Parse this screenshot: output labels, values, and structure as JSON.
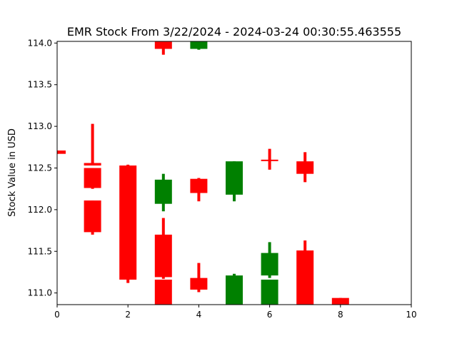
{
  "chart_data": {
    "type": "candlestick",
    "title": "EMR Stock From 3/22/2024 - 2024-03-24 00:30:55.463555",
    "xlabel": "",
    "ylabel": "Stock Value in USD",
    "xlim": [
      0,
      10
    ],
    "ylim": [
      110.86,
      114.02
    ],
    "x_ticks": [
      "0",
      "2",
      "4",
      "6",
      "8",
      "10"
    ],
    "y_ticks": [
      "111.0",
      "111.5",
      "112.0",
      "112.5",
      "113.0",
      "113.5",
      "114.0"
    ],
    "grid": false,
    "colors": {
      "up": "#008000",
      "down": "#ff0000"
    },
    "candles": [
      {
        "x": 0.0,
        "open": 112.71,
        "close": 112.67,
        "high": 112.71,
        "low": 112.67,
        "direction": "down"
      },
      {
        "x": 1.0,
        "open": 112.56,
        "close": 112.53,
        "high": 113.03,
        "low": 112.53,
        "direction": "down"
      },
      {
        "x": 1.0,
        "open": 112.5,
        "close": 112.26,
        "high": 112.5,
        "low": 112.25,
        "direction": "down"
      },
      {
        "x": 1.0,
        "open": 112.11,
        "close": 111.73,
        "high": 112.11,
        "low": 111.7,
        "direction": "down"
      },
      {
        "x": 2.0,
        "open": 112.53,
        "close": 111.16,
        "high": 112.54,
        "low": 111.12,
        "direction": "down"
      },
      {
        "x": 3.0,
        "open": 114.02,
        "close": 113.93,
        "high": 114.02,
        "low": 113.86,
        "direction": "down"
      },
      {
        "x": 3.0,
        "open": 112.07,
        "close": 112.36,
        "high": 112.43,
        "low": 111.98,
        "direction": "up"
      },
      {
        "x": 3.0,
        "open": 111.7,
        "close": 111.19,
        "high": 111.9,
        "low": 111.17,
        "direction": "down"
      },
      {
        "x": 3.0,
        "open": 111.16,
        "close": 110.86,
        "high": 111.16,
        "low": 110.86,
        "direction": "down"
      },
      {
        "x": 4.0,
        "open": 113.93,
        "close": 114.02,
        "high": 114.02,
        "low": 113.92,
        "direction": "up"
      },
      {
        "x": 4.0,
        "open": 112.37,
        "close": 112.2,
        "high": 112.38,
        "low": 112.1,
        "direction": "down"
      },
      {
        "x": 4.0,
        "open": 111.18,
        "close": 111.04,
        "high": 111.36,
        "low": 111.01,
        "direction": "down"
      },
      {
        "x": 5.0,
        "open": 112.18,
        "close": 112.58,
        "high": 112.58,
        "low": 112.1,
        "direction": "up"
      },
      {
        "x": 5.0,
        "open": 110.86,
        "close": 111.21,
        "high": 111.23,
        "low": 110.86,
        "direction": "up"
      },
      {
        "x": 6.0,
        "open": 112.6,
        "close": 112.59,
        "high": 112.73,
        "low": 112.48,
        "direction": "down"
      },
      {
        "x": 6.0,
        "open": 111.21,
        "close": 111.48,
        "high": 111.61,
        "low": 111.18,
        "direction": "up"
      },
      {
        "x": 6.0,
        "open": 110.86,
        "close": 111.16,
        "high": 111.16,
        "low": 110.86,
        "direction": "up"
      },
      {
        "x": 7.0,
        "open": 112.58,
        "close": 112.43,
        "high": 112.69,
        "low": 112.33,
        "direction": "down"
      },
      {
        "x": 7.0,
        "open": 111.51,
        "close": 110.86,
        "high": 111.63,
        "low": 110.86,
        "direction": "down"
      },
      {
        "x": 8.0,
        "open": 110.94,
        "close": 110.86,
        "high": 110.94,
        "low": 110.86,
        "direction": "down"
      }
    ]
  }
}
